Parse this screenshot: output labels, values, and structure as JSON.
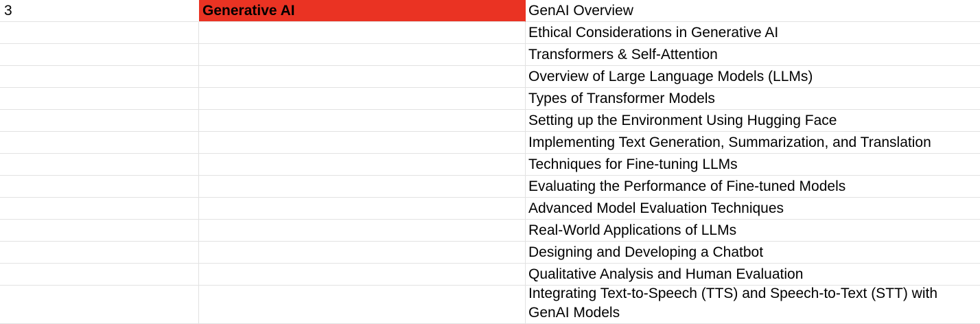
{
  "colors": {
    "highlight_red": "#ea3323",
    "gridline": "#e2e2e2",
    "text": "#000000"
  },
  "module": {
    "number": "3",
    "name": "Generative AI"
  },
  "topics": [
    "GenAI Overview",
    "Ethical Considerations in Generative AI",
    "Transformers & Self-Attention",
    "Overview of Large Language Models (LLMs)",
    "Types of Transformer Models",
    "Setting up the Environment Using Hugging Face",
    "Implementing Text Generation, Summarization, and Translation",
    "Techniques for Fine-tuning LLMs",
    "Evaluating the Performance of Fine-tuned Models",
    "Advanced Model Evaluation Techniques",
    "Real-World Applications of LLMs",
    "Designing and Developing a Chatbot",
    "Qualitative Analysis and Human Evaluation",
    "Integrating Text-to-Speech (TTS) and Speech-to-Text (STT) with GenAI Models"
  ]
}
